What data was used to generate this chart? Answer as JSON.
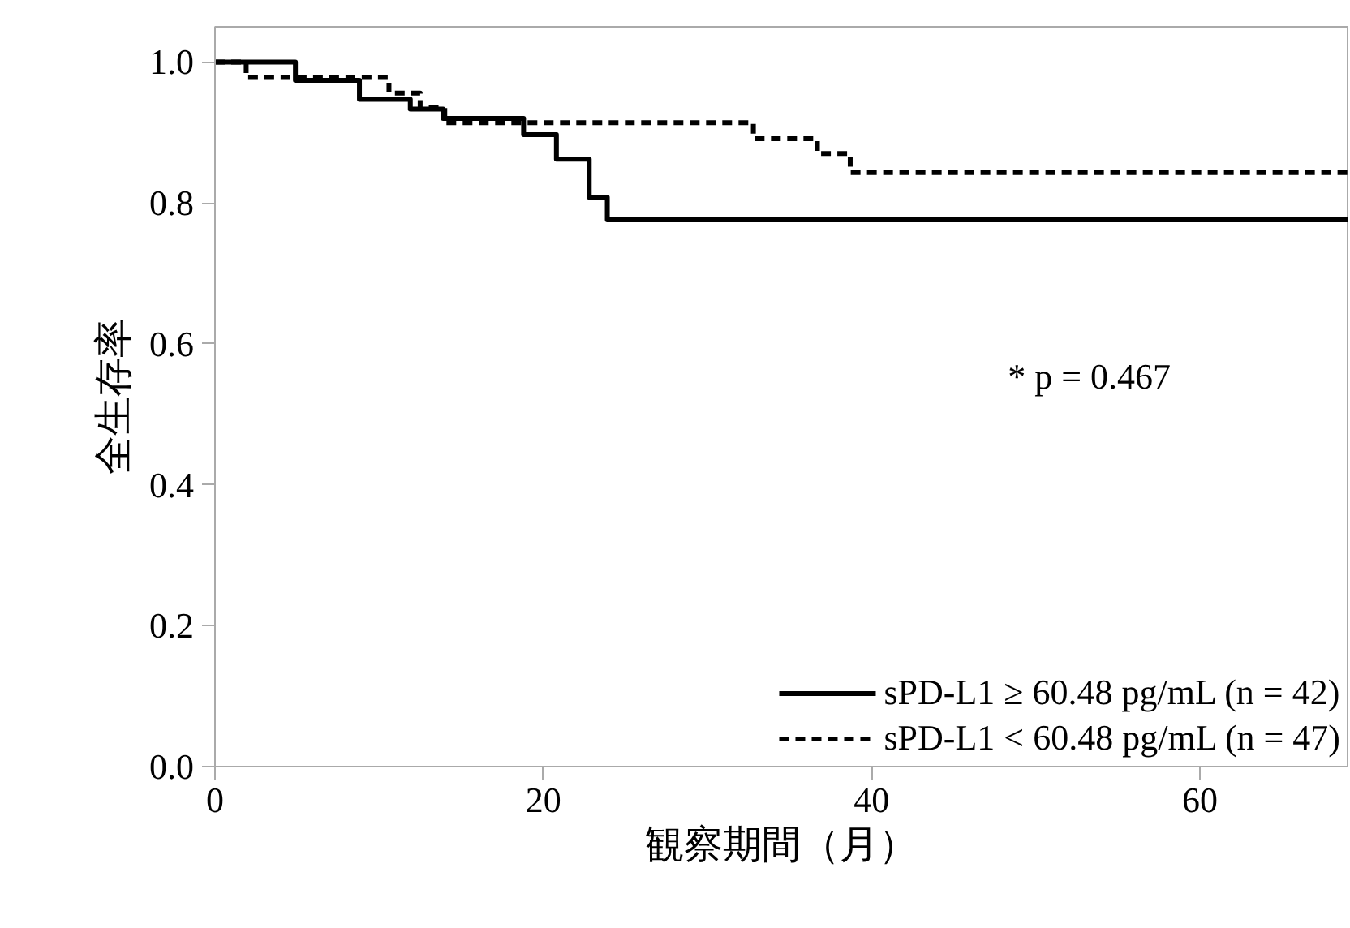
{
  "chart_data": {
    "type": "step",
    "xlabel": "観察期間（月）",
    "ylabel": "全生存率",
    "xlim": [
      0,
      69
    ],
    "ylim": [
      0,
      1.05
    ],
    "xticks": [
      0,
      20,
      40,
      60
    ],
    "yticks": [
      {
        "value": 0,
        "label": "0.0"
      },
      0.2,
      0.4,
      0.6,
      0.8,
      {
        "value": 1,
        "label": "1.0"
      }
    ],
    "grid": false,
    "legend": "bottom right",
    "marker": "none",
    "series": [
      {
        "name": "sPD-L1 ≥ 60.48 pg/mL (n = 42)",
        "color": "#000000",
        "line_style": "solid",
        "x": [
          0,
          4.9,
          8.8,
          11.9,
          13.9,
          18.8,
          20.8,
          22.8,
          23.9,
          69
        ],
        "values": [
          1.0,
          0.974,
          0.947,
          0.933,
          0.92,
          0.897,
          0.862,
          0.808,
          0.776,
          0.776
        ]
      },
      {
        "name": "sPD-L1 < 60.48 pg/mL (n = 47)",
        "color": "#000000",
        "line_style": "dashed",
        "x": [
          0,
          1.9,
          10.6,
          12.5,
          14,
          32.8,
          36.7,
          38.7,
          69
        ],
        "values": [
          1.0,
          0.978,
          0.956,
          0.935,
          0.914,
          0.891,
          0.87,
          0.843,
          0.843
        ]
      }
    ],
    "annotations": [
      "* p = 0.467"
    ]
  }
}
